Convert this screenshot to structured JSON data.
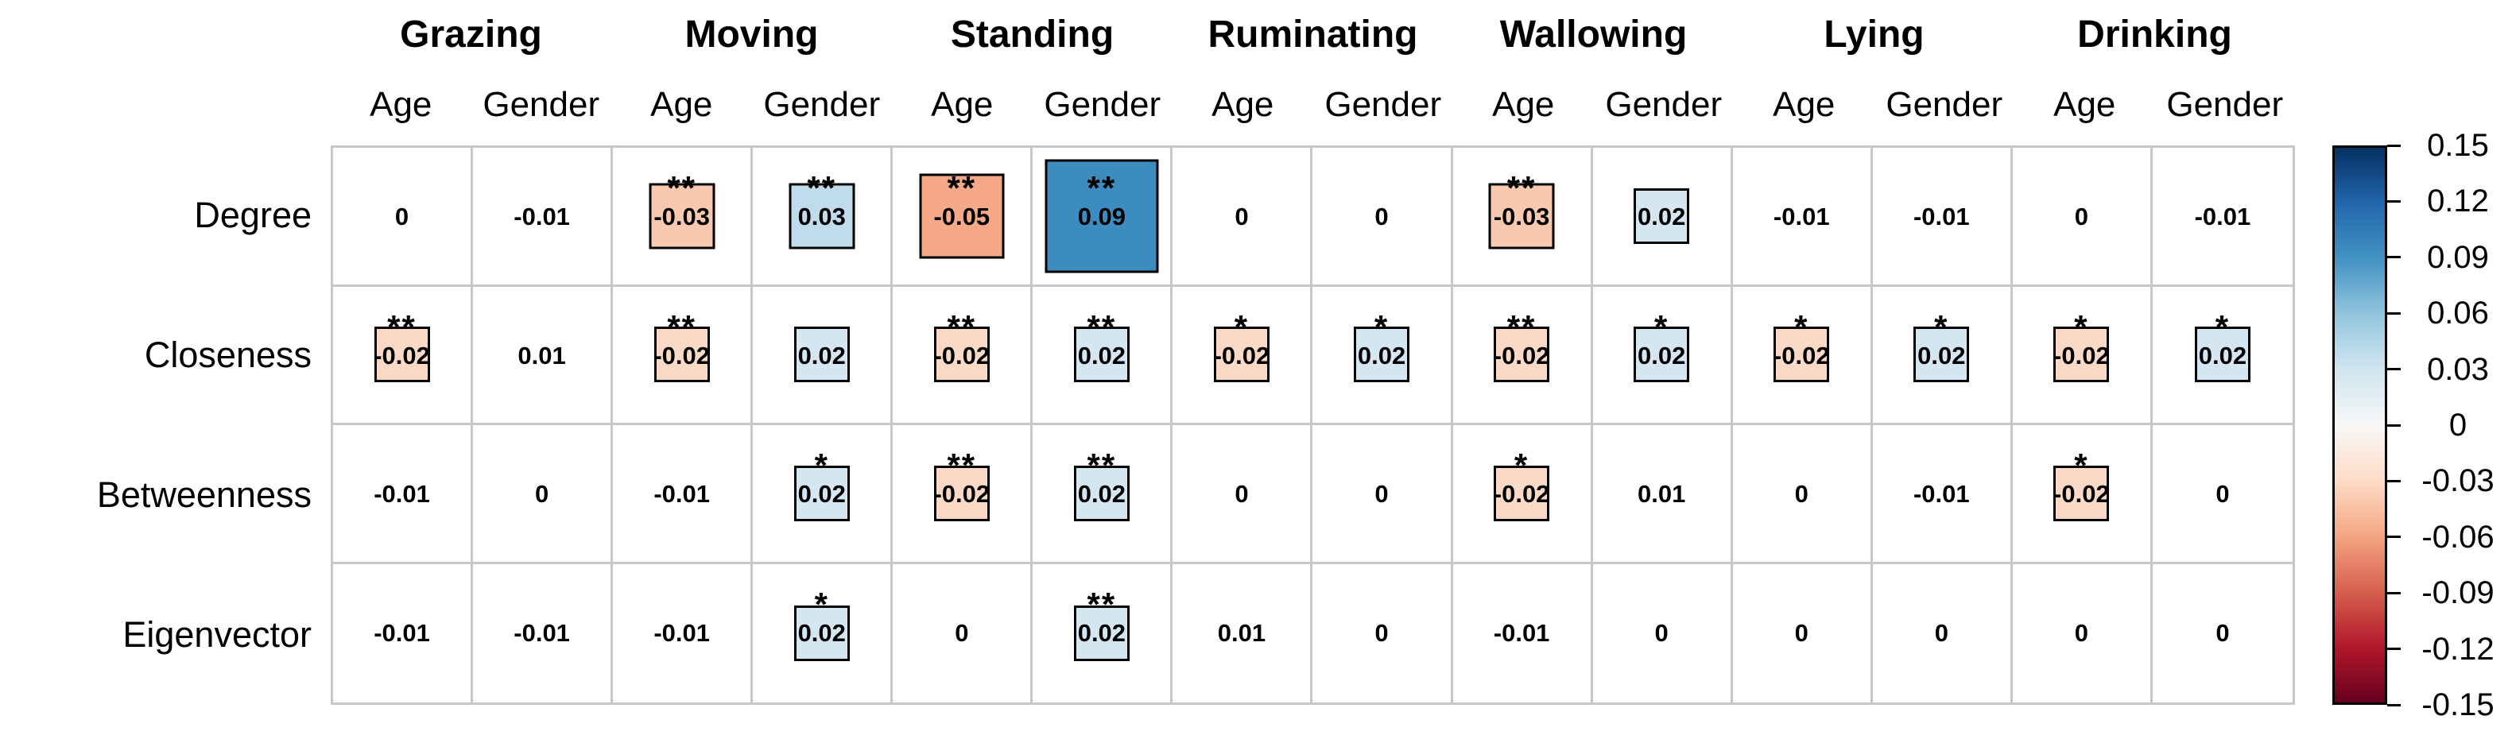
{
  "chart_data": {
    "type": "heatmap",
    "title": "",
    "row_labels": [
      "Degree",
      "Closeness",
      "Betweenness",
      "Eigenvector"
    ],
    "column_groups": [
      "Grazing",
      "Moving",
      "Standing",
      "Ruminating",
      "Wallowing",
      "Lying",
      "Drinking"
    ],
    "sub_columns": [
      "Age",
      "Gender"
    ],
    "columns": [
      "Grazing Age",
      "Grazing Gender",
      "Moving Age",
      "Moving Gender",
      "Standing Age",
      "Standing Gender",
      "Ruminating Age",
      "Ruminating Gender",
      "Wallowing Age",
      "Wallowing Gender",
      "Lying Age",
      "Lying Gender",
      "Drinking Age",
      "Drinking Gender"
    ],
    "values": [
      [
        "0",
        "-0.01",
        "-0.03",
        "0.03",
        "-0.05",
        "0.09",
        "0",
        "0",
        "-0.03",
        "0.02",
        "-0.01",
        "-0.01",
        "0",
        "-0.01"
      ],
      [
        "-0.02",
        "0.01",
        "-0.02",
        "0.02",
        "-0.02",
        "0.02",
        "-0.02",
        "0.02",
        "-0.02",
        "0.02",
        "-0.02",
        "0.02",
        "-0.02",
        "0.02"
      ],
      [
        "-0.01",
        "0",
        "-0.01",
        "0.02",
        "-0.02",
        "0.02",
        "0",
        "0",
        "-0.02",
        "0.01",
        "0",
        "-0.01",
        "-0.02",
        "0"
      ],
      [
        "-0.01",
        "-0.01",
        "-0.01",
        "0.02",
        "0",
        "0.02",
        "0.01",
        "0",
        "-0.01",
        "0",
        "0",
        "0",
        "0",
        "0"
      ]
    ],
    "significance": [
      [
        "",
        "",
        "**",
        "**",
        "**",
        "**",
        "",
        "",
        "**",
        "",
        "",
        "",
        "",
        ""
      ],
      [
        "**",
        "",
        "**",
        "",
        "**",
        "**",
        "*",
        "*",
        "**",
        "*",
        "*",
        "*",
        "*",
        "*"
      ],
      [
        "",
        "",
        "",
        "*",
        "**",
        "**",
        "",
        "",
        "*",
        "",
        "",
        "",
        "*",
        ""
      ],
      [
        "",
        "",
        "",
        "*",
        "",
        "**",
        "",
        "",
        "",
        "",
        "",
        "",
        "",
        ""
      ]
    ],
    "box_threshold": 0.02,
    "box_sizes": {
      "0.02": 70,
      "0.03": 83,
      "0.05": 107,
      "0.09": 143
    },
    "value_colors": {
      "0.02": "#D4E6F1",
      "0.03": "#C0DBEC",
      "0.09": "#3D8CC0",
      "-0.02": "#FADAC6",
      "-0.03": "#F9C9AF",
      "-0.05": "#F5A989"
    },
    "grid_line_color": "#C7C7C7",
    "box_border_color": "#000000",
    "colorbar": {
      "min": -0.15,
      "max": 0.15,
      "ticks": [
        "0.15",
        "0.12",
        "0.09",
        "0.06",
        "0.03",
        "0",
        "-0.03",
        "-0.06",
        "-0.09",
        "-0.12",
        "-0.15"
      ],
      "gradient_top_to_bottom": [
        "#053061",
        "#2166AC",
        "#4393C3",
        "#92C5DE",
        "#D1E5F0",
        "#F7F7F7",
        "#FDDBC7",
        "#F4A582",
        "#D6604D",
        "#B2182B",
        "#67001F"
      ],
      "position": "right"
    },
    "legend_note": "box size and color encode correlation magnitude; * and ** mark significance"
  }
}
